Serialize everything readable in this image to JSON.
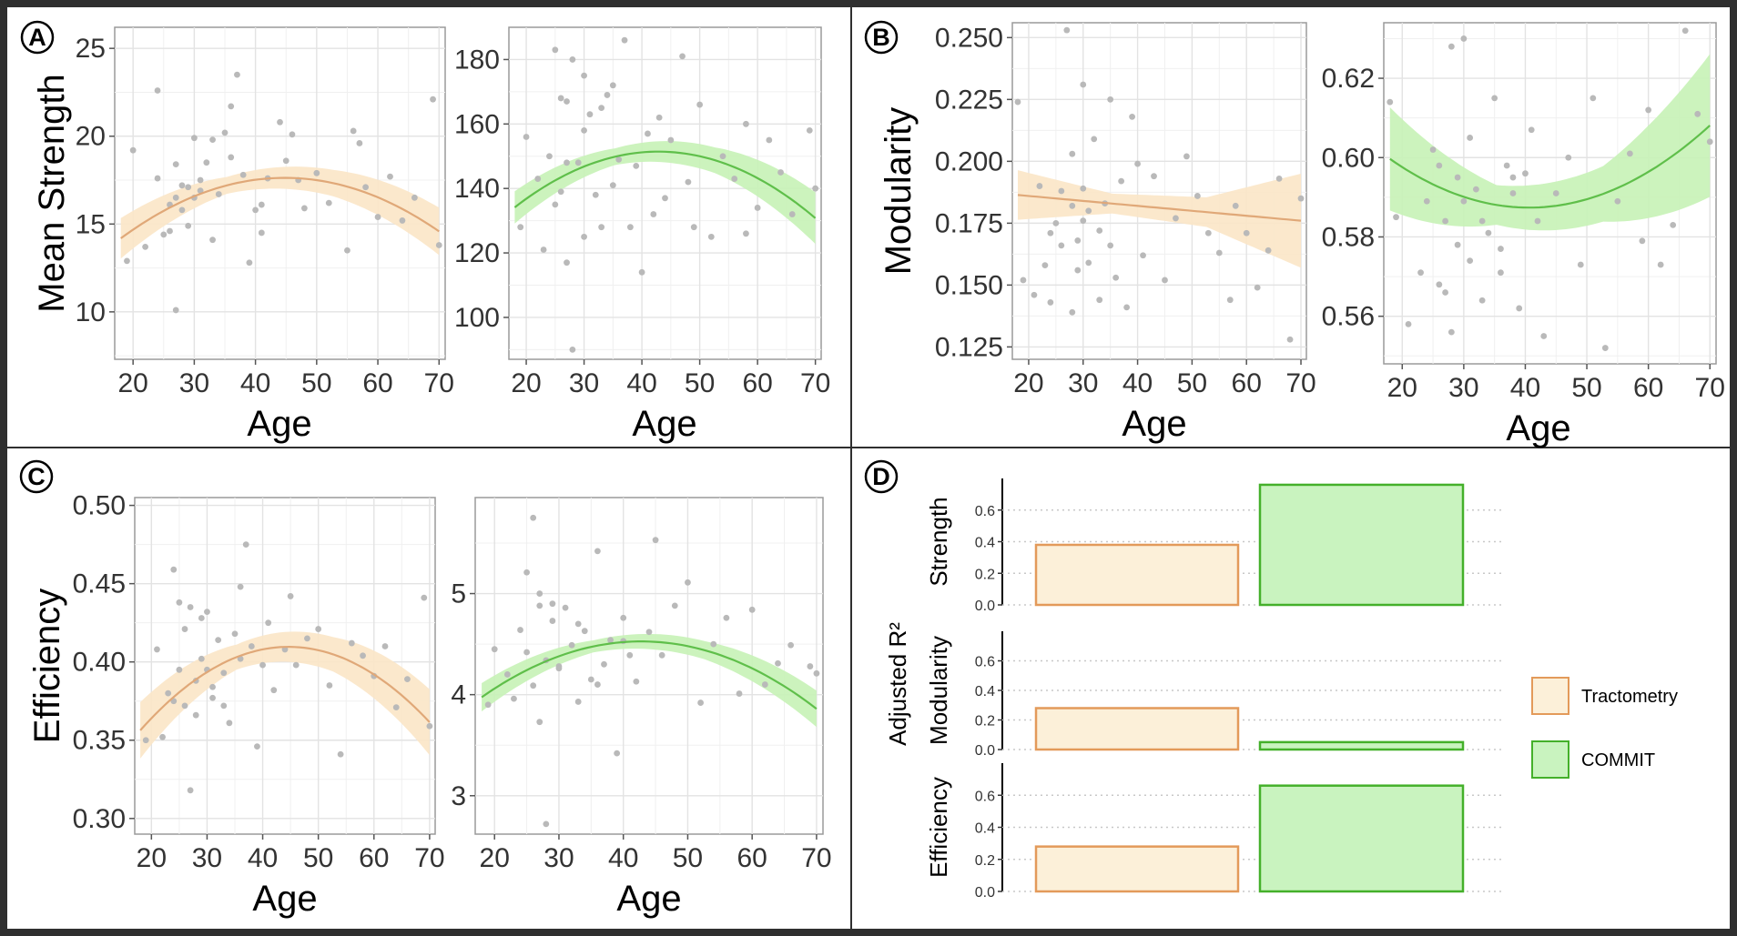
{
  "colors": {
    "tractometry_line": "#e0a878",
    "tractometry_ribbon": "#fbe6c6",
    "commit_line": "#5fbf4a",
    "commit_ribbon": "#c6f2b6",
    "points": "#b9b9b9",
    "tractometry_bar_fill": "#fcf0d9",
    "tractometry_bar_stroke": "#e39a5a",
    "commit_bar_fill": "#c9f3bf",
    "commit_bar_stroke": "#44b02a"
  },
  "panel_labels": {
    "a": "A",
    "b": "B",
    "c": "C",
    "d": "D"
  },
  "chart_data": [
    {
      "id": "a_tract",
      "type": "scatter",
      "method": "Tractometry",
      "title": "",
      "xlabel": "Age",
      "ylabel": "Mean Strength",
      "xlim": [
        17,
        71
      ],
      "ylim": [
        7.3,
        26.2
      ],
      "x_ticks": [
        20,
        30,
        40,
        50,
        60,
        70
      ],
      "x_tick_labels": [
        "20",
        "30",
        "40",
        "50",
        "60",
        "70"
      ],
      "y_ticks": [
        10,
        15,
        20,
        25
      ],
      "y_tick_labels": [
        "10",
        "15",
        "20",
        "25"
      ],
      "points_x": [
        19,
        20,
        22,
        24,
        25,
        26,
        27,
        27,
        28,
        29,
        30,
        30,
        31,
        32,
        33,
        33,
        34,
        35,
        36,
        37,
        38,
        39,
        40,
        41,
        42,
        44,
        45,
        47,
        48,
        50,
        52,
        55,
        56,
        58,
        60,
        62,
        64,
        66,
        69,
        70,
        24,
        26,
        28,
        29,
        31,
        36,
        41,
        46,
        57,
        27
      ],
      "points_y": [
        12.9,
        19.2,
        13.7,
        22.6,
        14.4,
        16.1,
        18.4,
        10.1,
        17.2,
        14.9,
        16.5,
        19.9,
        17.5,
        18.5,
        14.1,
        19.8,
        16.7,
        20.2,
        21.7,
        23.5,
        17.8,
        12.8,
        15.8,
        16.1,
        17.6,
        20.8,
        18.6,
        17.5,
        15.9,
        17.9,
        16.2,
        13.5,
        20.3,
        17.1,
        15.4,
        17.7,
        15.2,
        16.5,
        22.1,
        13.8,
        17.6,
        14.6,
        15.8,
        17.1,
        16.9,
        18.8,
        14.5,
        20.1,
        19.6,
        16.5
      ],
      "fit_x": [
        18,
        70
      ],
      "fit_coef": [
        -0.0048,
        0.43,
        8.0
      ],
      "ribbon_halfwidth": [
        1.15,
        0.48,
        0.75,
        1.35
      ]
    },
    {
      "id": "a_commit",
      "type": "scatter",
      "method": "COMMIT",
      "title": "",
      "xlabel": "Age",
      "ylabel": "",
      "xlim": [
        17,
        71
      ],
      "ylim": [
        87,
        190
      ],
      "x_ticks": [
        20,
        30,
        40,
        50,
        60,
        70
      ],
      "x_tick_labels": [
        "20",
        "30",
        "40",
        "50",
        "60",
        "70"
      ],
      "y_ticks": [
        100,
        120,
        140,
        160,
        180
      ],
      "y_tick_labels": [
        "100",
        "120",
        "140",
        "160",
        "180"
      ],
      "points_x": [
        19,
        20,
        22,
        23,
        24,
        25,
        26,
        26,
        27,
        27,
        28,
        29,
        30,
        30,
        31,
        32,
        33,
        34,
        35,
        36,
        37,
        38,
        39,
        40,
        41,
        42,
        44,
        45,
        47,
        48,
        50,
        52,
        54,
        56,
        58,
        60,
        62,
        64,
        66,
        69,
        70,
        25,
        28,
        30,
        33,
        43,
        49,
        58,
        27,
        35
      ],
      "points_y": [
        128,
        156,
        143,
        121,
        150,
        183,
        168,
        139,
        167,
        117,
        90,
        148,
        175,
        125,
        163,
        138,
        128,
        169,
        141,
        149,
        186,
        128,
        147,
        114,
        157,
        132,
        137,
        155,
        181,
        142,
        166,
        125,
        150,
        143,
        160,
        134,
        155,
        145,
        132,
        158,
        140,
        135,
        180,
        158,
        165,
        162,
        128,
        126,
        148,
        172
      ],
      "fit_x": [
        18,
        70
      ],
      "fit_coef": [
        -0.028,
        2.4,
        100.0
      ],
      "ribbon_halfwidth": [
        5,
        2.6,
        4,
        8
      ]
    },
    {
      "id": "b_tract",
      "type": "scatter",
      "method": "Tractometry",
      "title": "",
      "xlabel": "Age",
      "ylabel": "Modularity",
      "xlim": [
        17,
        71
      ],
      "ylim": [
        0.12,
        0.256
      ],
      "x_ticks": [
        20,
        30,
        40,
        50,
        60,
        70
      ],
      "x_tick_labels": [
        "20",
        "30",
        "40",
        "50",
        "60",
        "70"
      ],
      "y_ticks": [
        0.125,
        0.15,
        0.175,
        0.2,
        0.225,
        0.25
      ],
      "y_tick_labels": [
        "0.125",
        "0.150",
        "0.175",
        "0.200",
        "0.225",
        "0.250"
      ],
      "points_x": [
        18,
        19,
        21,
        22,
        23,
        24,
        25,
        26,
        27,
        28,
        28,
        29,
        30,
        30,
        31,
        32,
        33,
        34,
        35,
        36,
        37,
        38,
        39,
        40,
        41,
        43,
        45,
        47,
        49,
        51,
        53,
        55,
        57,
        58,
        60,
        62,
        64,
        66,
        68,
        70,
        24,
        26,
        29,
        31,
        33,
        35,
        28,
        30
      ],
      "points_y": [
        0.224,
        0.152,
        0.146,
        0.19,
        0.158,
        0.143,
        0.175,
        0.166,
        0.253,
        0.182,
        0.203,
        0.168,
        0.231,
        0.176,
        0.159,
        0.209,
        0.144,
        0.183,
        0.225,
        0.153,
        0.192,
        0.141,
        0.218,
        0.199,
        0.162,
        0.194,
        0.152,
        0.177,
        0.202,
        0.186,
        0.171,
        0.163,
        0.144,
        0.182,
        0.171,
        0.149,
        0.164,
        0.193,
        0.128,
        0.185,
        0.171,
        0.188,
        0.156,
        0.18,
        0.172,
        0.166,
        0.139,
        0.189
      ],
      "fit_x": [
        18,
        70
      ],
      "fit_coef": [
        0.0,
        -0.0002,
        0.19
      ],
      "ribbon_halfwidth": [
        0.01,
        0.004,
        0.006,
        0.019
      ]
    },
    {
      "id": "b_commit",
      "type": "scatter",
      "method": "COMMIT",
      "title": "",
      "xlabel": "Age",
      "ylabel": "",
      "xlim": [
        17,
        71
      ],
      "ylim": [
        0.548,
        0.634
      ],
      "x_ticks": [
        20,
        30,
        40,
        50,
        60,
        70
      ],
      "x_tick_labels": [
        "20",
        "30",
        "40",
        "50",
        "60",
        "70"
      ],
      "y_ticks": [
        0.56,
        0.58,
        0.6,
        0.62
      ],
      "y_tick_labels": [
        "0.56",
        "0.58",
        "0.60",
        "0.62"
      ],
      "points_x": [
        18,
        19,
        21,
        23,
        24,
        25,
        26,
        27,
        28,
        28,
        29,
        30,
        31,
        32,
        33,
        34,
        35,
        36,
        37,
        38,
        39,
        40,
        41,
        42,
        43,
        45,
        47,
        49,
        51,
        53,
        55,
        57,
        59,
        60,
        62,
        64,
        66,
        68,
        70,
        26,
        29,
        31,
        33,
        36,
        38,
        27,
        30
      ],
      "points_y": [
        0.614,
        0.585,
        0.558,
        0.571,
        0.589,
        0.602,
        0.568,
        0.584,
        0.628,
        0.556,
        0.595,
        0.63,
        0.574,
        0.592,
        0.564,
        0.581,
        0.615,
        0.577,
        0.598,
        0.591,
        0.562,
        0.596,
        0.607,
        0.584,
        0.555,
        0.591,
        0.6,
        0.573,
        0.615,
        0.552,
        0.589,
        0.601,
        0.579,
        0.612,
        0.573,
        0.583,
        0.632,
        0.611,
        0.604,
        0.598,
        0.578,
        0.605,
        0.584,
        0.571,
        0.595,
        0.566,
        0.589
      ],
      "fit_x": [
        18,
        70
      ],
      "fit_coef": [
        2.4e-05,
        -0.00195,
        0.627
      ],
      "ribbon_halfwidth": [
        0.013,
        0.005,
        0.007,
        0.018
      ]
    },
    {
      "id": "c_tract",
      "type": "scatter",
      "method": "Tractometry",
      "title": "",
      "xlabel": "Age",
      "ylabel": "Efficiency",
      "xlim": [
        17,
        71
      ],
      "ylim": [
        0.29,
        0.505
      ],
      "x_ticks": [
        20,
        30,
        40,
        50,
        60,
        70
      ],
      "x_tick_labels": [
        "20",
        "30",
        "40",
        "50",
        "60",
        "70"
      ],
      "y_ticks": [
        0.3,
        0.35,
        0.4,
        0.45,
        0.5
      ],
      "y_tick_labels": [
        "0.30",
        "0.35",
        "0.40",
        "0.45",
        "0.50"
      ],
      "points_x": [
        19,
        21,
        22,
        23,
        24,
        25,
        26,
        27,
        27,
        28,
        29,
        30,
        31,
        32,
        33,
        34,
        35,
        36,
        37,
        38,
        39,
        40,
        41,
        42,
        44,
        45,
        46,
        48,
        50,
        52,
        54,
        56,
        58,
        60,
        62,
        64,
        66,
        69,
        70,
        24,
        26,
        28,
        30,
        33,
        36,
        25,
        31,
        29
      ],
      "points_y": [
        0.35,
        0.408,
        0.352,
        0.38,
        0.459,
        0.395,
        0.372,
        0.435,
        0.318,
        0.388,
        0.402,
        0.432,
        0.377,
        0.414,
        0.393,
        0.361,
        0.418,
        0.448,
        0.475,
        0.41,
        0.346,
        0.398,
        0.425,
        0.382,
        0.408,
        0.442,
        0.398,
        0.415,
        0.421,
        0.385,
        0.341,
        0.412,
        0.404,
        0.391,
        0.41,
        0.371,
        0.389,
        0.441,
        0.359,
        0.375,
        0.421,
        0.366,
        0.395,
        0.372,
        0.402,
        0.438,
        0.384,
        0.428
      ],
      "fit_x": [
        18,
        70
      ],
      "fit_coef": [
        -7.5e-05,
        0.0067,
        0.26
      ],
      "ribbon_halfwidth": [
        0.018,
        0.008,
        0.011,
        0.021
      ]
    },
    {
      "id": "c_commit",
      "type": "scatter",
      "method": "COMMIT",
      "title": "",
      "xlabel": "Age",
      "ylabel": "",
      "xlim": [
        17,
        71
      ],
      "ylim": [
        2.62,
        5.95
      ],
      "x_ticks": [
        20,
        30,
        40,
        50,
        60,
        70
      ],
      "x_tick_labels": [
        "20",
        "30",
        "40",
        "50",
        "60",
        "70"
      ],
      "y_ticks": [
        3,
        4,
        5
      ],
      "y_tick_labels": [
        "3",
        "4",
        "5"
      ],
      "points_x": [
        19,
        20,
        22,
        23,
        24,
        25,
        26,
        26,
        27,
        28,
        28,
        29,
        30,
        31,
        32,
        33,
        34,
        35,
        36,
        37,
        38,
        39,
        40,
        41,
        42,
        44,
        45,
        46,
        48,
        50,
        52,
        54,
        56,
        58,
        60,
        62,
        64,
        66,
        69,
        70,
        25,
        27,
        30,
        33,
        36,
        40,
        27,
        29
      ],
      "points_y": [
        3.9,
        4.45,
        4.2,
        3.96,
        4.64,
        5.21,
        5.75,
        4.09,
        5.0,
        4.34,
        2.72,
        4.73,
        4.28,
        4.86,
        4.49,
        3.93,
        4.63,
        4.15,
        5.42,
        4.3,
        4.54,
        3.42,
        4.76,
        4.39,
        4.13,
        4.62,
        5.53,
        4.39,
        4.88,
        5.11,
        3.92,
        4.5,
        4.76,
        4.01,
        4.84,
        4.1,
        4.31,
        4.49,
        4.28,
        4.21,
        4.42,
        4.88,
        4.26,
        4.7,
        4.1,
        4.53,
        3.73,
        4.9
      ],
      "fit_x": [
        18,
        70
      ],
      "fit_coef": [
        -0.0009,
        0.077,
        2.88
      ],
      "ribbon_halfwidth": [
        0.14,
        0.06,
        0.09,
        0.18
      ]
    },
    {
      "id": "d_r2",
      "type": "bar",
      "title": "",
      "ylabel": "Adjusted R²",
      "ylim": [
        0,
        0.8
      ],
      "y_ticks": [
        0.0,
        0.2,
        0.4,
        0.6
      ],
      "y_tick_labels": [
        "0.0",
        "0.2",
        "0.4",
        "0.6"
      ],
      "facets": [
        "Strength",
        "Modularity",
        "Efficiency"
      ],
      "series": [
        {
          "name": "Tractometry",
          "values": [
            0.38,
            0.28,
            0.28
          ]
        },
        {
          "name": "COMMIT",
          "values": [
            0.76,
            0.05,
            0.66
          ]
        }
      ],
      "legend": [
        "Tractometry",
        "COMMIT"
      ],
      "legend_position": "right"
    }
  ]
}
